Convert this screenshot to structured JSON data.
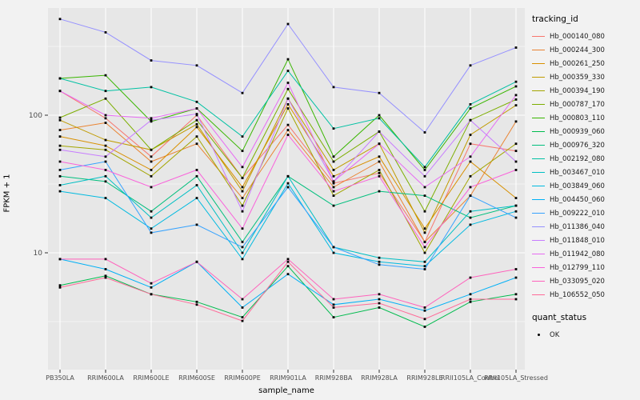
{
  "chart_data": {
    "type": "line",
    "title": "",
    "xlabel": "sample_name",
    "ylabel": "FPKM + 1",
    "yscale": "log10",
    "yticks": [
      10,
      100
    ],
    "ytick_labels": [
      "10",
      "100"
    ],
    "minor_gridlines": [
      3.162,
      31.62,
      316.2
    ],
    "ylim": [
      1.45,
      560
    ],
    "legend_title": "tracking_id",
    "legend2_title": "quant_status",
    "legend2_items": [
      {
        "label": "OK",
        "marker": "point"
      }
    ],
    "panel_bg": "#e7e7e7",
    "outer_bg": "#f2f2f2",
    "grid_color": "#ffffff",
    "tick_text_color": "#4d4d4d",
    "marker_color": "#000000",
    "categories": [
      "PB350LA",
      "RRIM600LA",
      "RRIM600LE",
      "RRIM600SE",
      "RRIM600PE",
      "RRIM901LA",
      "RRIM928BA",
      "RRIM928LA",
      "RRIM928LE",
      "RRII105LA_Control",
      "RRII105LA_Stressed"
    ],
    "series": [
      {
        "name": "Hb_000140_080",
        "color": "#F8766D",
        "values": [
          150,
          95,
          50,
          100,
          35,
          85,
          32,
          38,
          12,
          62,
          55
        ]
      },
      {
        "name": "Hb_000244_300",
        "color": "#EA8331",
        "values": [
          78,
          88,
          46,
          62,
          25,
          78,
          30,
          46,
          12,
          26,
          90
        ]
      },
      {
        "name": "Hb_000261_250",
        "color": "#D89000",
        "values": [
          70,
          60,
          40,
          82,
          30,
          120,
          36,
          50,
          15,
          46,
          25
        ]
      },
      {
        "name": "Hb_000359_330",
        "color": "#C09B00",
        "values": [
          92,
          66,
          56,
          86,
          28,
          132,
          40,
          62,
          14,
          72,
          118
        ]
      },
      {
        "name": "Hb_000394_190",
        "color": "#A3A500",
        "values": [
          60,
          56,
          36,
          70,
          22,
          112,
          26,
          40,
          10,
          36,
          62
        ]
      },
      {
        "name": "Hb_000787_170",
        "color": "#7CAE00",
        "values": [
          96,
          132,
          56,
          92,
          35,
          155,
          46,
          76,
          20,
          92,
          130
        ]
      },
      {
        "name": "Hb_000803_110",
        "color": "#39B600",
        "values": [
          185,
          195,
          90,
          112,
          55,
          255,
          50,
          100,
          40,
          112,
          162
        ]
      },
      {
        "name": "Hb_000939_060",
        "color": "#00BB4E",
        "values": [
          5.8,
          6.8,
          5.0,
          4.4,
          3.4,
          8.0,
          3.4,
          4.0,
          2.9,
          4.4,
          5.0
        ]
      },
      {
        "name": "Hb_000976_320",
        "color": "#00BF7D",
        "values": [
          36,
          33,
          20,
          36,
          12,
          36,
          22,
          28,
          26,
          18,
          22
        ]
      },
      {
        "name": "Hb_002192_080",
        "color": "#00C1A3",
        "values": [
          185,
          150,
          160,
          125,
          70,
          210,
          80,
          95,
          42,
          120,
          175
        ]
      },
      {
        "name": "Hb_003467_010",
        "color": "#00BFC4",
        "values": [
          31,
          36,
          18,
          31,
          10,
          36,
          11,
          9.2,
          8.6,
          20,
          22
        ]
      },
      {
        "name": "Hb_003849_060",
        "color": "#00BAE0",
        "values": [
          28,
          25,
          15,
          25,
          9,
          32,
          10,
          8.6,
          8.0,
          16,
          20
        ]
      },
      {
        "name": "Hb_004450_060",
        "color": "#00B0F6",
        "values": [
          9.0,
          7.6,
          5.6,
          8.6,
          4.0,
          7.0,
          4.2,
          4.6,
          3.8,
          5.0,
          6.6
        ]
      },
      {
        "name": "Hb_009222_010",
        "color": "#35A2FF",
        "values": [
          40,
          46,
          14,
          16,
          11,
          30,
          11,
          8.2,
          7.6,
          26,
          18
        ]
      },
      {
        "name": "Hb_011386_040",
        "color": "#9590FF",
        "values": [
          500,
          400,
          250,
          230,
          145,
          460,
          160,
          145,
          75,
          230,
          310
        ]
      },
      {
        "name": "Hb_011848_010",
        "color": "#C77CFF",
        "values": [
          56,
          50,
          92,
          102,
          20,
          132,
          33,
          76,
          36,
          92,
          46
        ]
      },
      {
        "name": "Hb_011942_080",
        "color": "#E76BF3",
        "values": [
          150,
          100,
          95,
          112,
          42,
          172,
          33,
          62,
          30,
          50,
          140
        ]
      },
      {
        "name": "Hb_012799_110",
        "color": "#FA62DB",
        "values": [
          46,
          40,
          30,
          40,
          15,
          72,
          28,
          36,
          11,
          30,
          40
        ]
      },
      {
        "name": "Hb_033095_020",
        "color": "#FF62BC",
        "values": [
          9.0,
          9.0,
          6.0,
          8.6,
          4.6,
          9.0,
          4.6,
          5.0,
          4.0,
          6.6,
          7.6
        ]
      },
      {
        "name": "Hb_106552_050",
        "color": "#FF6A98",
        "values": [
          5.6,
          6.6,
          5.0,
          4.2,
          3.2,
          8.6,
          4.0,
          4.3,
          3.3,
          4.6,
          4.6
        ]
      }
    ]
  }
}
